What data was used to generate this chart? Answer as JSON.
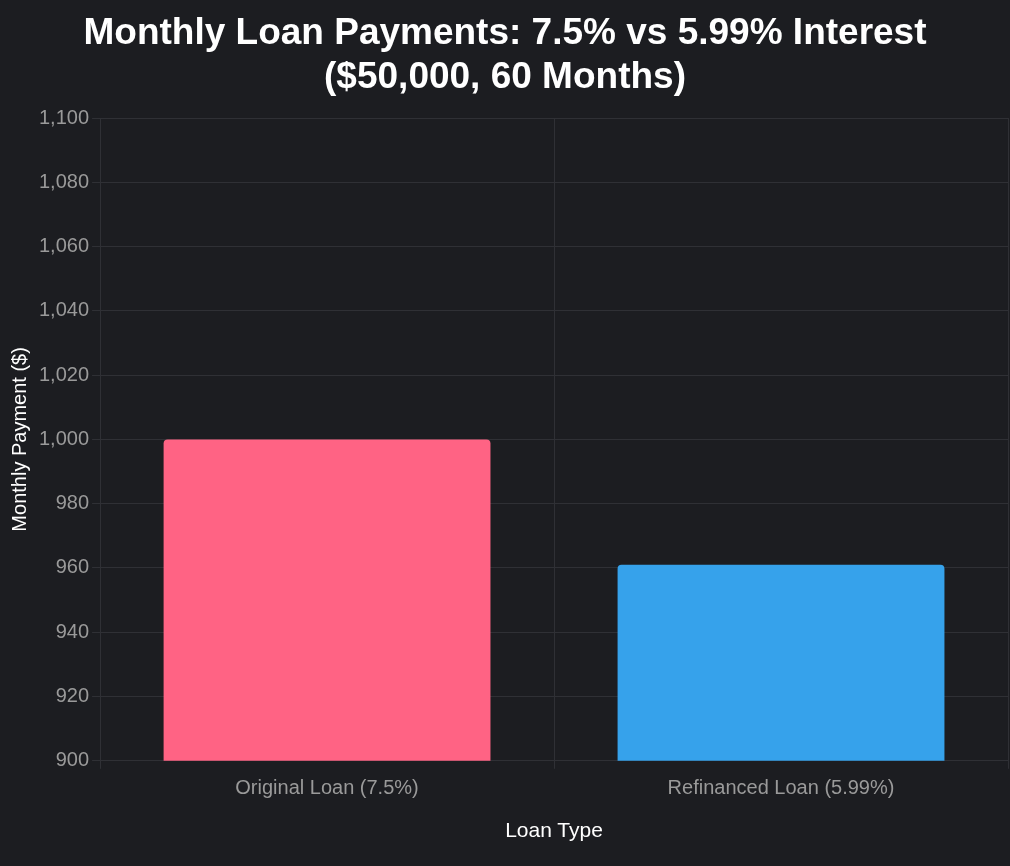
{
  "chart_data": {
    "type": "bar",
    "title": "Monthly Loan Payments: 7.5% vs 5.99% Interest ($50,000, 60 Months)",
    "xlabel": "Loan Type",
    "ylabel": "Monthly Payment ($)",
    "categories": [
      "Original Loan (7.5%)",
      "Refinanced Loan (5.99%)"
    ],
    "values": [
      1000,
      961
    ],
    "colors": [
      "#ff6384",
      "#36a2eb"
    ],
    "ylim": [
      900,
      1100
    ],
    "yticks": [
      {
        "value": 900,
        "label": "900"
      },
      {
        "value": 920,
        "label": "920"
      },
      {
        "value": 940,
        "label": "940"
      },
      {
        "value": 960,
        "label": "960"
      },
      {
        "value": 980,
        "label": "980"
      },
      {
        "value": 1000,
        "label": "1,000"
      },
      {
        "value": 1020,
        "label": "1,020"
      },
      {
        "value": 1040,
        "label": "1,040"
      },
      {
        "value": 1060,
        "label": "1,060"
      },
      {
        "value": 1080,
        "label": "1,080"
      },
      {
        "value": 1100,
        "label": "1,100"
      }
    ],
    "grid": true,
    "legend": false
  }
}
